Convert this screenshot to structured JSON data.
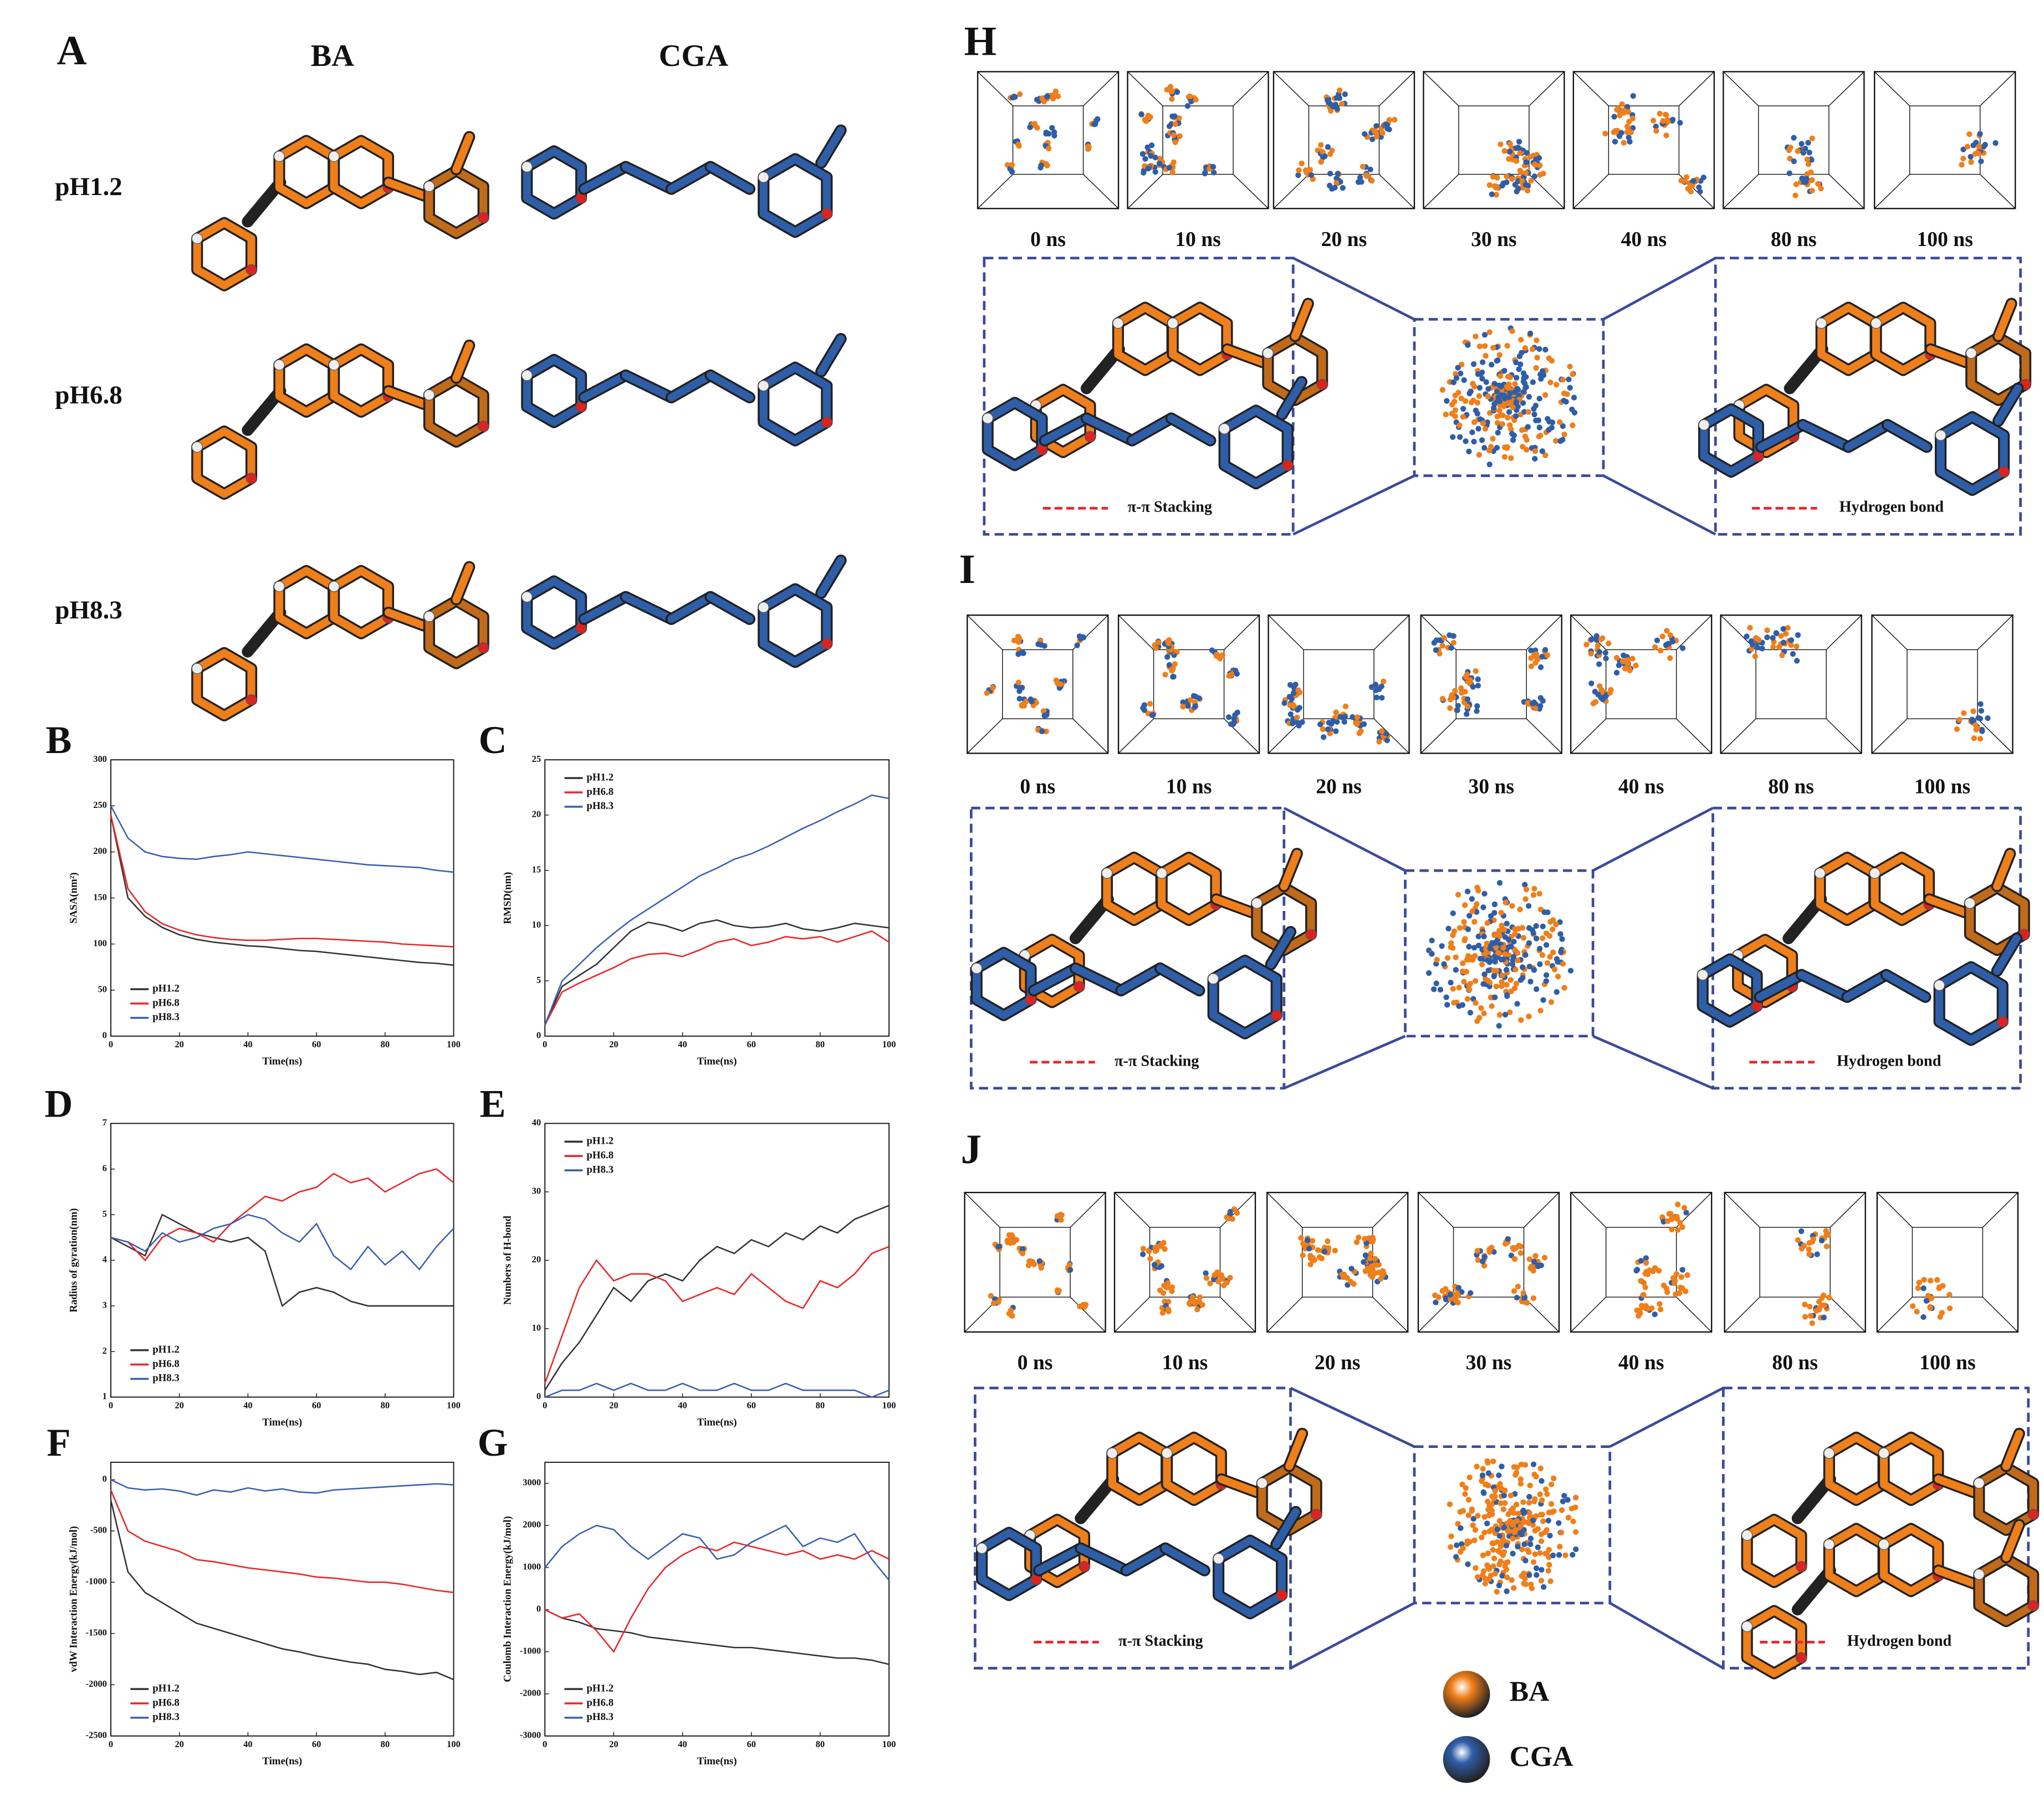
{
  "molecules": {
    "panel": "A",
    "columns": [
      "BA",
      "CGA"
    ],
    "rows": [
      "pH1.2",
      "pH6.8",
      "pH8.3"
    ]
  },
  "chart_data": [
    {
      "type": "line",
      "panel": "B",
      "xlabel": "Time(ns)",
      "ylabel": "SASA(nm²)",
      "xlim": [
        0,
        100
      ],
      "ylim": [
        0,
        300
      ],
      "xticks": [
        0,
        20,
        40,
        60,
        80,
        100
      ],
      "yticks": [
        0,
        50,
        100,
        150,
        200,
        250,
        300
      ],
      "legend": "lower left",
      "x": [
        0,
        5,
        10,
        15,
        20,
        25,
        30,
        35,
        40,
        45,
        50,
        55,
        60,
        65,
        70,
        75,
        80,
        85,
        90,
        95,
        100
      ],
      "series": [
        {
          "name": "pH1.2",
          "color": "#333333",
          "values": [
            240,
            150,
            130,
            118,
            110,
            105,
            102,
            100,
            98,
            97,
            95,
            93,
            92,
            90,
            88,
            86,
            84,
            82,
            80,
            79,
            77
          ]
        },
        {
          "name": "pH6.8",
          "color": "#e8262a",
          "values": [
            240,
            160,
            135,
            122,
            115,
            110,
            107,
            105,
            104,
            104,
            105,
            106,
            106,
            105,
            104,
            103,
            102,
            100,
            99,
            98,
            97
          ]
        },
        {
          "name": "pH8.3",
          "color": "#3a5fb0",
          "values": [
            250,
            215,
            200,
            195,
            193,
            192,
            195,
            197,
            200,
            198,
            196,
            194,
            192,
            190,
            188,
            186,
            185,
            184,
            183,
            180,
            178
          ]
        }
      ]
    },
    {
      "type": "line",
      "panel": "C",
      "xlabel": "Time(ns)",
      "ylabel": "RMSD(nm)",
      "xlim": [
        0,
        100
      ],
      "ylim": [
        0,
        25
      ],
      "xticks": [
        0,
        20,
        40,
        60,
        80,
        100
      ],
      "yticks": [
        0,
        5,
        10,
        15,
        20,
        25
      ],
      "legend": "upper left",
      "x": [
        0,
        5,
        10,
        15,
        20,
        25,
        30,
        35,
        40,
        45,
        50,
        55,
        60,
        65,
        70,
        75,
        80,
        85,
        90,
        95,
        100
      ],
      "series": [
        {
          "name": "pH1.2",
          "color": "#333333",
          "values": [
            1,
            4.5,
            5.5,
            6.5,
            8,
            9.5,
            10.3,
            10,
            9.5,
            10.2,
            10.5,
            10,
            9.8,
            9.9,
            10.2,
            9.7,
            9.5,
            9.8,
            10.2,
            10,
            9.8
          ]
        },
        {
          "name": "pH6.8",
          "color": "#e8262a",
          "values": [
            1,
            4,
            4.8,
            5.5,
            6.2,
            7,
            7.4,
            7.5,
            7.2,
            7.8,
            8.5,
            8.8,
            8.2,
            8.5,
            9,
            8.8,
            9,
            8.5,
            9,
            9.5,
            8.5
          ]
        },
        {
          "name": "pH8.3",
          "color": "#3a5fb0",
          "values": [
            1,
            5,
            6.5,
            8,
            9.3,
            10.5,
            11.5,
            12.5,
            13.5,
            14.5,
            15.2,
            16,
            16.5,
            17.2,
            18,
            18.8,
            19.5,
            20.3,
            21,
            21.8,
            21.5
          ]
        }
      ]
    },
    {
      "type": "line",
      "panel": "D",
      "xlabel": "Time(ns)",
      "ylabel": "Radius of gyration(nm)",
      "xlim": [
        0,
        100
      ],
      "ylim": [
        1,
        7
      ],
      "xticks": [
        0,
        20,
        40,
        60,
        80,
        100
      ],
      "yticks": [
        1,
        2,
        3,
        4,
        5,
        6,
        7
      ],
      "legend": "lower left",
      "x": [
        0,
        5,
        10,
        15,
        20,
        25,
        30,
        35,
        40,
        45,
        50,
        55,
        60,
        65,
        70,
        75,
        80,
        85,
        90,
        95,
        100
      ],
      "series": [
        {
          "name": "pH1.2",
          "color": "#333333",
          "values": [
            4.5,
            4.3,
            4.1,
            5,
            4.8,
            4.6,
            4.5,
            4.4,
            4.5,
            4.2,
            3.0,
            3.3,
            3.4,
            3.3,
            3.1,
            3.0,
            3.0,
            3.0,
            3.0,
            3.0,
            3.0
          ]
        },
        {
          "name": "pH6.8",
          "color": "#e8262a",
          "values": [
            4.5,
            4.4,
            4.0,
            4.5,
            4.7,
            4.6,
            4.4,
            4.8,
            5.1,
            5.4,
            5.3,
            5.5,
            5.6,
            5.9,
            5.7,
            5.8,
            5.5,
            5.7,
            5.9,
            6.0,
            5.7
          ]
        },
        {
          "name": "pH8.3",
          "color": "#3a5fb0",
          "values": [
            4.5,
            4.4,
            4.2,
            4.6,
            4.4,
            4.5,
            4.7,
            4.8,
            5.0,
            4.9,
            4.6,
            4.4,
            4.8,
            4.1,
            3.8,
            4.3,
            3.9,
            4.2,
            3.8,
            4.3,
            4.7
          ]
        }
      ]
    },
    {
      "type": "line",
      "panel": "E",
      "xlabel": "Time(ns)",
      "ylabel": "Numbers of H-bond",
      "xlim": [
        0,
        100
      ],
      "ylim": [
        0,
        40
      ],
      "xticks": [
        0,
        20,
        40,
        60,
        80,
        100
      ],
      "yticks": [
        0,
        10,
        20,
        30,
        40
      ],
      "legend": "upper left",
      "x": [
        0,
        5,
        10,
        15,
        20,
        25,
        30,
        35,
        40,
        45,
        50,
        55,
        60,
        65,
        70,
        75,
        80,
        85,
        90,
        95,
        100
      ],
      "series": [
        {
          "name": "pH1.2",
          "color": "#333333",
          "values": [
            1,
            5,
            8,
            12,
            16,
            14,
            17,
            18,
            17,
            20,
            22,
            21,
            23,
            22,
            24,
            23,
            25,
            24,
            26,
            27,
            28
          ]
        },
        {
          "name": "pH6.8",
          "color": "#e8262a",
          "values": [
            2,
            9,
            16,
            20,
            17,
            18,
            18,
            17,
            14,
            15,
            16,
            15,
            18,
            16,
            14,
            13,
            17,
            16,
            18,
            21,
            22
          ]
        },
        {
          "name": "pH8.3",
          "color": "#3a5fb0",
          "values": [
            0,
            1,
            1,
            2,
            1,
            2,
            1,
            1,
            2,
            1,
            1,
            2,
            1,
            1,
            2,
            1,
            1,
            1,
            1,
            0,
            1
          ]
        }
      ]
    },
    {
      "type": "line",
      "panel": "F",
      "xlabel": "Time(ns)",
      "ylabel": "vdW Interaction Energy(kJ/mol)",
      "xlim": [
        0,
        100
      ],
      "ylim": [
        -2500,
        170
      ],
      "xticks": [
        0,
        20,
        40,
        60,
        80,
        100
      ],
      "yticks": [
        -2500,
        -2000,
        -1500,
        -1000,
        -500,
        0
      ],
      "legend": "lower left",
      "x": [
        0,
        5,
        10,
        15,
        20,
        25,
        30,
        35,
        40,
        45,
        50,
        55,
        60,
        65,
        70,
        75,
        80,
        85,
        90,
        95,
        100
      ],
      "series": [
        {
          "name": "pH1.2",
          "color": "#333333",
          "values": [
            -200,
            -900,
            -1100,
            -1200,
            -1300,
            -1400,
            -1450,
            -1500,
            -1550,
            -1600,
            -1650,
            -1680,
            -1720,
            -1750,
            -1780,
            -1800,
            -1850,
            -1870,
            -1900,
            -1880,
            -1950
          ]
        },
        {
          "name": "pH6.8",
          "color": "#e8262a",
          "values": [
            -100,
            -500,
            -600,
            -650,
            -700,
            -780,
            -800,
            -830,
            -860,
            -880,
            -900,
            -920,
            -950,
            -960,
            -980,
            -1000,
            -1000,
            -1020,
            -1050,
            -1080,
            -1100
          ]
        },
        {
          "name": "pH8.3",
          "color": "#3a5fb0",
          "values": [
            0,
            -80,
            -100,
            -90,
            -110,
            -150,
            -100,
            -120,
            -80,
            -110,
            -90,
            -120,
            -130,
            -100,
            -90,
            -80,
            -70,
            -60,
            -50,
            -40,
            -50
          ]
        }
      ]
    },
    {
      "type": "line",
      "panel": "G",
      "xlabel": "Time(ns)",
      "ylabel": "Coulomb Interaction Energy(kJ/mol)",
      "xlim": [
        0,
        100
      ],
      "ylim": [
        -3000,
        3500
      ],
      "xticks": [
        0,
        20,
        40,
        60,
        80,
        100
      ],
      "yticks": [
        -3000,
        -2000,
        -1000,
        0,
        1000,
        2000,
        3000
      ],
      "legend": "lower left",
      "x": [
        0,
        5,
        10,
        15,
        20,
        25,
        30,
        35,
        40,
        45,
        50,
        55,
        60,
        65,
        70,
        75,
        80,
        85,
        90,
        95,
        100
      ],
      "series": [
        {
          "name": "pH1.2",
          "color": "#333333",
          "values": [
            0,
            -200,
            -300,
            -450,
            -500,
            -550,
            -650,
            -700,
            -750,
            -800,
            -850,
            -900,
            -900,
            -950,
            -1000,
            -1050,
            -1100,
            -1150,
            -1150,
            -1200,
            -1300
          ]
        },
        {
          "name": "pH6.8",
          "color": "#e8262a",
          "values": [
            0,
            -200,
            -100,
            -500,
            -1000,
            -200,
            500,
            1000,
            1300,
            1500,
            1400,
            1600,
            1500,
            1400,
            1300,
            1400,
            1200,
            1300,
            1200,
            1400,
            1200
          ]
        },
        {
          "name": "pH8.3",
          "color": "#3a5fb0",
          "values": [
            1000,
            1500,
            1800,
            2000,
            1900,
            1500,
            1200,
            1500,
            1800,
            1700,
            1200,
            1300,
            1600,
            1800,
            2000,
            1500,
            1700,
            1600,
            1800,
            1200,
            700
          ]
        }
      ]
    }
  ],
  "snapshots": [
    {
      "panel": "H",
      "times": [
        "0 ns",
        "10 ns",
        "20 ns",
        "30 ns",
        "40 ns",
        "80 ns",
        "100 ns"
      ],
      "stacking": "π-π Stacking",
      "hbond": "Hydrogen bond"
    },
    {
      "panel": "I",
      "times": [
        "0 ns",
        "10 ns",
        "20 ns",
        "30 ns",
        "40 ns",
        "80 ns",
        "100 ns"
      ],
      "stacking": "π-π Stacking",
      "hbond": "Hydrogen bond"
    },
    {
      "panel": "J",
      "times": [
        "0 ns",
        "10 ns",
        "20 ns",
        "30 ns",
        "40 ns",
        "80 ns",
        "100 ns"
      ],
      "stacking": "π-π Stacking",
      "hbond": "Hydrogen bond"
    }
  ],
  "legend": [
    "BA",
    "CGA"
  ]
}
